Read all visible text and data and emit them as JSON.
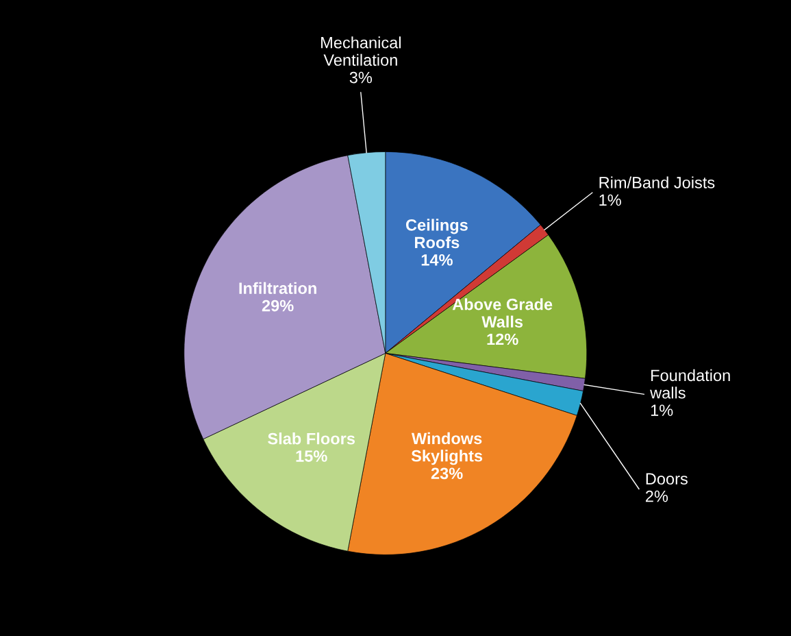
{
  "chart_data": {
    "type": "pie",
    "categories": [
      "Ceilings\nRoofs",
      "Rim/Band Joists",
      "Above Grade\nWalls",
      "Foundation\nwalls",
      "Doors",
      "Windows\nSkylights",
      "Slab Floors",
      "Infiltration",
      "Mechanical\nVentilation"
    ],
    "values": [
      14,
      1,
      12,
      1,
      2,
      23,
      15,
      29,
      3
    ],
    "colors": [
      "#3a74c0",
      "#d03a35",
      "#8db43c",
      "#8060a8",
      "#2aa5cf",
      "#f08424",
      "#bcd88a",
      "#a796c8",
      "#7fcce3"
    ],
    "value_labels": [
      "14%",
      "1%",
      "12%",
      "1%",
      "2%",
      "23%",
      "15%",
      "29%",
      "3%"
    ],
    "legend": false
  }
}
